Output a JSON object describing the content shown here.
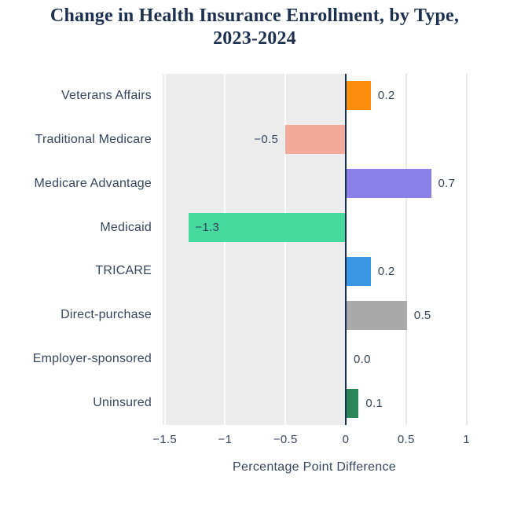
{
  "chart": {
    "title": "Change in Health Insurance Enrollment, by Type, 2023-2024",
    "chart_data": {
      "type": "bar",
      "orientation": "horizontal",
      "title": "Change in Health Insurance Enrollment, by Type, 2023-2024",
      "categories": [
        "Veterans Affairs",
        "Traditional Medicare",
        "Medicare Advantage",
        "Medicaid",
        "TRICARE",
        "Direct-purchase",
        "Employer-sponsored",
        "Uninsured"
      ],
      "values": [
        0.2,
        -0.5,
        0.7,
        -1.3,
        0.2,
        0.5,
        0.0,
        0.1
      ],
      "value_labels": [
        "0.2",
        "−0.5",
        "0.7",
        "−1.3",
        "0.2",
        "0.5",
        "0.0",
        "0.1"
      ],
      "bar_colors": [
        "#FB8D0D",
        "#F4AA9B",
        "#8B80E8",
        "#45D99E",
        "#3B96E3",
        "#A9A9A9",
        "#A9A9A9",
        "#2A8659"
      ],
      "xlabel": "Percentage Point Difference",
      "ylabel": "",
      "xlim": [
        -1.52,
        1.2
      ],
      "xticks": [
        -1.5,
        -1,
        -0.5,
        0,
        0.5,
        1
      ],
      "xtick_labels": [
        "−1.5",
        "−1",
        "−0.5",
        "0",
        "0.5",
        "1"
      ],
      "grid": true,
      "legend": false,
      "colors": {
        "negative_region_background": "#ECECEC",
        "gridline_on_gray": "#FBFBFB",
        "gridline_on_white": "#E9E9E9",
        "zero_axis_line": "#16304F",
        "title_text": "#1C3050",
        "label_text": "#36455F"
      }
    }
  }
}
